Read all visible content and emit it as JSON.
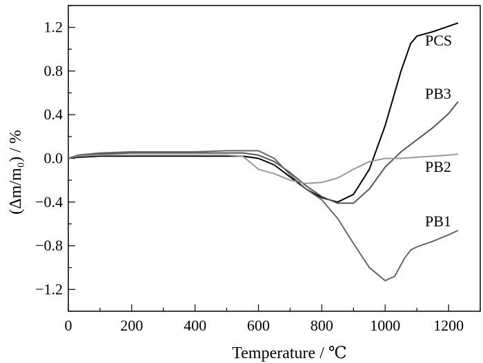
{
  "chart_data": {
    "type": "line",
    "title": "",
    "xlabel": "Temperature / ℃",
    "ylabel": "(Δm/m₀) / %",
    "xlim": [
      0,
      1300
    ],
    "ylim": [
      -1.4,
      1.4
    ],
    "x_ticks": [
      "0",
      "200",
      "400",
      "600",
      "800",
      "1000",
      "1200"
    ],
    "y_ticks": [
      "1.2",
      "0.8",
      "0.4",
      "0.0",
      "-0.4",
      "-0.8",
      "-1.2"
    ],
    "grid": false,
    "legend": "inline labels at right end of curves",
    "series": [
      {
        "name": "PCS",
        "color": "#000000",
        "x": [
          0,
          30,
          100,
          200,
          300,
          400,
          500,
          550,
          600,
          650,
          700,
          750,
          800,
          850,
          900,
          950,
          1000,
          1050,
          1080,
          1100,
          1150,
          1200,
          1230
        ],
        "y": [
          0.0,
          0.01,
          0.02,
          0.02,
          0.02,
          0.02,
          0.02,
          0.02,
          0.0,
          -0.06,
          -0.17,
          -0.28,
          -0.36,
          -0.4,
          -0.33,
          -0.1,
          0.3,
          0.8,
          1.05,
          1.12,
          1.16,
          1.21,
          1.24
        ]
      },
      {
        "name": "PB3",
        "color": "#555555",
        "x": [
          0,
          30,
          100,
          200,
          300,
          400,
          500,
          550,
          600,
          650,
          700,
          750,
          800,
          850,
          900,
          950,
          1000,
          1050,
          1100,
          1150,
          1200,
          1230
        ],
        "y": [
          0.0,
          0.02,
          0.04,
          0.05,
          0.05,
          0.05,
          0.05,
          0.05,
          0.03,
          -0.03,
          -0.13,
          -0.25,
          -0.35,
          -0.41,
          -0.41,
          -0.28,
          -0.08,
          0.06,
          0.17,
          0.28,
          0.41,
          0.52
        ]
      },
      {
        "name": "PB2",
        "color": "#999999",
        "x": [
          0,
          30,
          100,
          200,
          300,
          400,
          500,
          550,
          580,
          600,
          650,
          700,
          750,
          800,
          850,
          900,
          950,
          1000,
          1050,
          1100,
          1150,
          1200,
          1230
        ],
        "y": [
          0.0,
          0.02,
          0.03,
          0.03,
          0.03,
          0.03,
          0.03,
          0.02,
          -0.05,
          -0.1,
          -0.14,
          -0.2,
          -0.23,
          -0.22,
          -0.18,
          -0.1,
          -0.03,
          0.0,
          0.0,
          0.01,
          0.02,
          0.03,
          0.04
        ]
      },
      {
        "name": "PB1",
        "color": "#666666",
        "x": [
          0,
          30,
          100,
          200,
          300,
          400,
          500,
          550,
          600,
          650,
          700,
          750,
          800,
          850,
          900,
          950,
          1000,
          1030,
          1060,
          1080,
          1100,
          1150,
          1200,
          1230
        ],
        "y": [
          0.0,
          0.03,
          0.05,
          0.06,
          0.06,
          0.06,
          0.07,
          0.07,
          0.07,
          0.0,
          -0.15,
          -0.28,
          -0.38,
          -0.55,
          -0.78,
          -1.0,
          -1.12,
          -1.08,
          -0.92,
          -0.84,
          -0.81,
          -0.76,
          -0.7,
          -0.66
        ]
      }
    ]
  }
}
